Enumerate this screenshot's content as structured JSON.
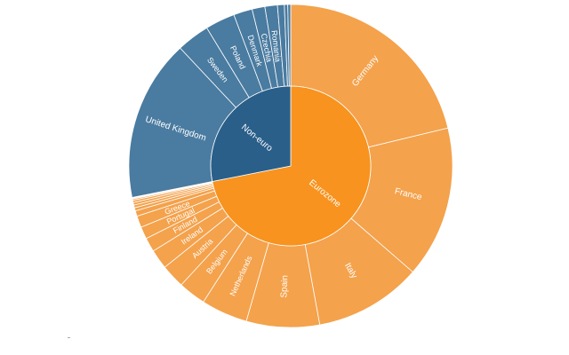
{
  "chart_data": {
    "type": "sunburst",
    "colors": {
      "Eurozone": {
        "inner": "#f7931e",
        "outer": "#f4a24c"
      },
      "Non-euro": {
        "inner": "#2a5f8a",
        "outer": "#4a7ba0"
      },
      "border": "#ffffff"
    },
    "groups": [
      {
        "name": "Eurozone",
        "children": [
          {
            "name": "Germany",
            "value": 3431
          },
          {
            "name": "France",
            "value": 2453
          },
          {
            "name": "Italy",
            "value": 1734
          },
          {
            "name": "Spain",
            "value": 1181
          },
          {
            "name": "Netherlands",
            "value": 751
          },
          {
            "name": "Belgium",
            "value": 445
          },
          {
            "name": "Austria",
            "value": 385
          },
          {
            "name": "Ireland",
            "value": 317
          },
          {
            "name": "Finland",
            "value": 228
          },
          {
            "name": "Portugal",
            "value": 198
          },
          {
            "name": "Greece",
            "value": 187
          },
          {
            "name": "",
            "value": 89
          },
          {
            "name": "",
            "value": 50
          },
          {
            "name": "",
            "value": 45
          },
          {
            "name": "",
            "value": 42
          },
          {
            "name": "",
            "value": 35
          },
          {
            "name": "",
            "value": 22
          },
          {
            "name": "",
            "value": 14
          },
          {
            "name": "",
            "value": 12
          }
        ]
      },
      {
        "name": "Non-euro",
        "children": [
          {
            "name": "United Kingdom",
            "value": 2611
          },
          {
            "name": "Sweden",
            "value": 532
          },
          {
            "name": "Poland",
            "value": 479
          },
          {
            "name": "Denmark",
            "value": 303
          },
          {
            "name": "Czechia",
            "value": 207
          },
          {
            "name": "Romania",
            "value": 202
          },
          {
            "name": "",
            "value": 110
          },
          {
            "name": "",
            "value": 55
          },
          {
            "name": "",
            "value": 47
          }
        ]
      }
    ]
  }
}
